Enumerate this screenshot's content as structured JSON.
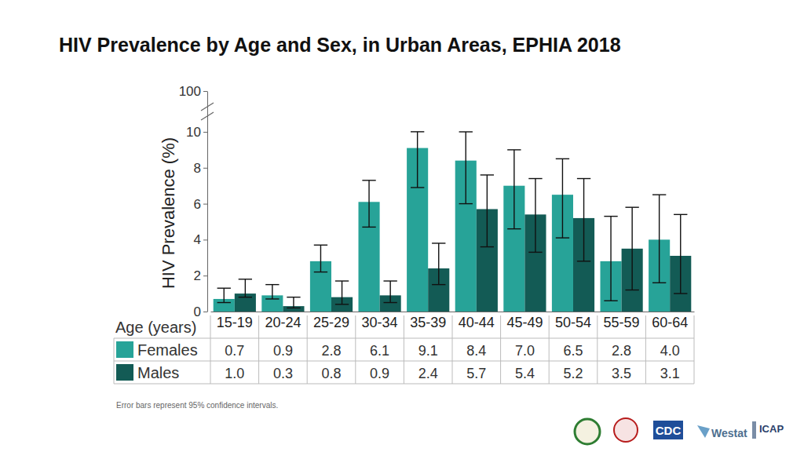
{
  "chart_data": {
    "type": "bar",
    "title": "HIV Prevalence by Age and Sex, in Urban Areas, EPHIA 2018",
    "x_label": "Age (years)",
    "y_label": "HIV Prevalence (%)",
    "annotations": [
      "Error bars represent 95% confidence intervals.",
      "CDC",
      "Westat",
      "ICAP"
    ],
    "categories": [
      "15-19",
      "20-24",
      "25-29",
      "30-34",
      "35-39",
      "40-44",
      "45-49",
      "50-54",
      "55-59",
      "60-64"
    ],
    "series": [
      {
        "name": "Females",
        "color": "#27a398",
        "values": [
          0.7,
          0.9,
          2.8,
          6.1,
          9.1,
          8.4,
          7.0,
          6.5,
          2.8,
          4.0
        ],
        "value_labels": [
          "0.7",
          "0.9",
          "2.8",
          "6.1",
          "9.1",
          "8.4",
          "7.0",
          "6.5",
          "2.8",
          "4.0"
        ],
        "ci_lower": [
          0.5,
          0.7,
          2.2,
          4.7,
          6.9,
          6.0,
          4.6,
          4.1,
          0.6,
          1.6
        ],
        "ci_upper": [
          1.3,
          1.5,
          3.7,
          7.3,
          10.2,
          10.0,
          9.0,
          8.5,
          5.3,
          6.5
        ]
      },
      {
        "name": "Males",
        "color": "#135b55",
        "values": [
          1.0,
          0.3,
          0.8,
          0.9,
          2.4,
          5.7,
          5.4,
          5.2,
          3.5,
          3.1
        ],
        "value_labels": [
          "1.0",
          "0.3",
          "0.8",
          "0.9",
          "2.4",
          "5.7",
          "5.4",
          "5.2",
          "3.5",
          "3.1"
        ],
        "ci_lower": [
          0.8,
          0.2,
          0.4,
          0.5,
          1.5,
          3.6,
          3.3,
          2.8,
          1.2,
          1.0
        ],
        "ci_upper": [
          1.8,
          0.8,
          1.7,
          1.7,
          3.8,
          7.6,
          7.4,
          7.4,
          5.8,
          5.4
        ]
      }
    ],
    "ylim": [
      0,
      100
    ],
    "yticks": [
      0,
      2,
      4,
      6,
      8,
      10,
      100
    ],
    "grid": false,
    "data_labels": true
  }
}
